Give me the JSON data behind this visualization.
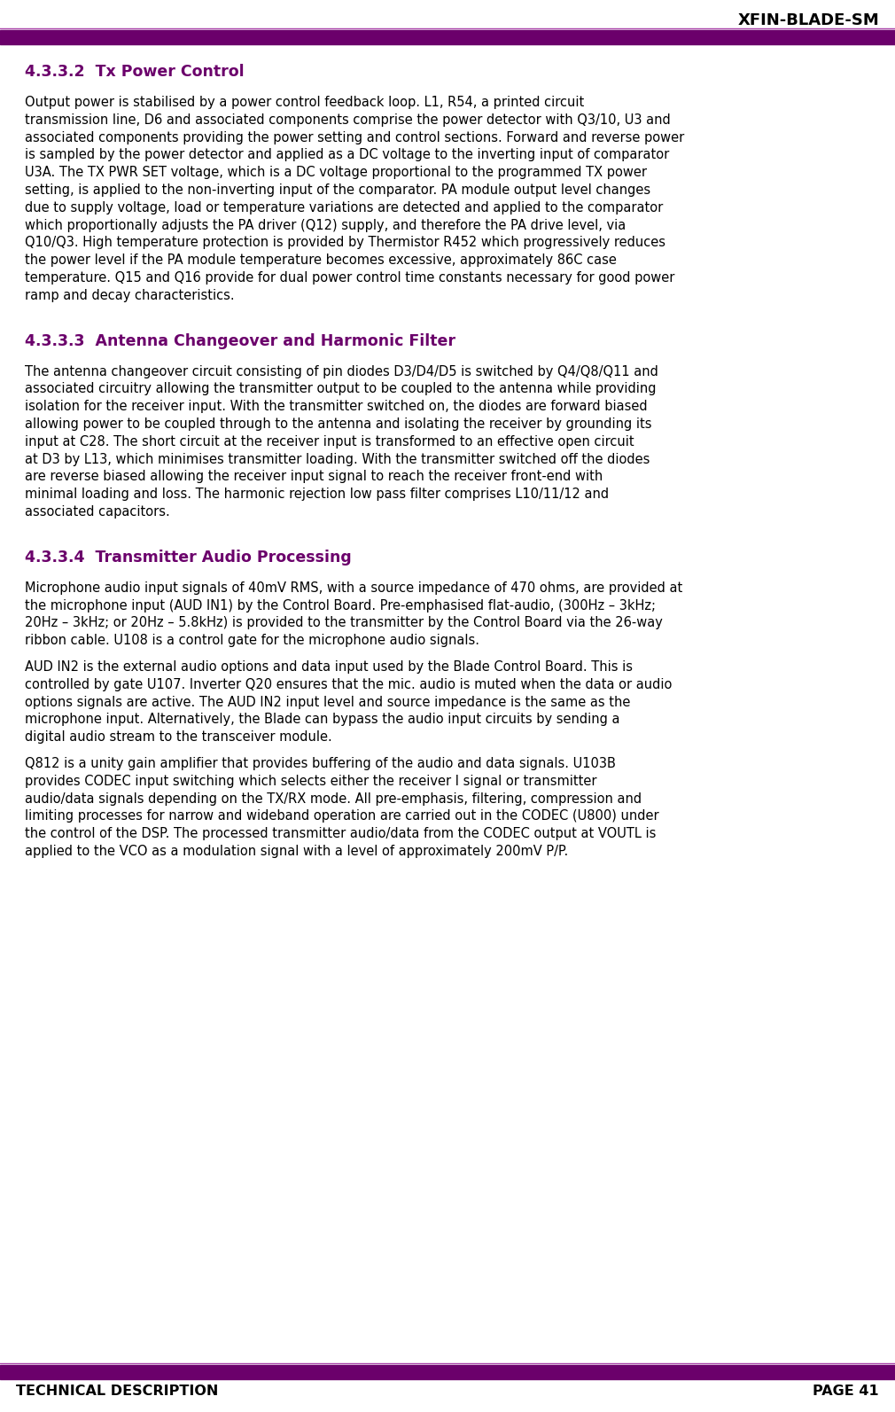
{
  "header_title": "XFIN-BLADE-SM",
  "footer_left": "TECHNICAL DESCRIPTION",
  "footer_right": "PAGE 41",
  "header_bar_color": "#6B006B",
  "footer_bar_color": "#6B006B",
  "heading_color": "#6B006B",
  "body_color": "#000000",
  "background_color": "#FFFFFF",
  "sections": [
    {
      "heading": "4.3.3.2  Tx Power Control",
      "paragraphs": [
        "Output power is stabilised by a power control feedback loop. L1, R54, a printed circuit transmission line, D6 and associated components comprise the power detector with Q3/10, U3 and associated components providing the power setting and control sections. Forward and reverse power is sampled by the power detector and applied as a DC voltage to the inverting input of comparator U3A. The TX PWR SET voltage, which is a DC voltage proportional to the programmed TX power setting, is applied to the non-inverting input of the comparator. PA module output level changes due to supply voltage, load or temperature variations are detected and applied to the comparator which proportionally adjusts the PA driver (Q12) supply, and therefore the PA drive level, via Q10/Q3. High temperature protection is provided by Thermistor R452 which progressively reduces the power level if the PA module temperature becomes excessive, approximately 86C case temperature. Q15 and Q16 provide for dual power control time constants necessary for good power ramp and decay characteristics."
      ]
    },
    {
      "heading": "4.3.3.3  Antenna Changeover and Harmonic Filter",
      "paragraphs": [
        "The antenna changeover circuit consisting of pin diodes D3/D4/D5 is switched by Q4/Q8/Q11 and associated circuitry allowing the transmitter output to be coupled to the antenna while providing isolation for the receiver input. With the transmitter switched on, the diodes are forward biased allowing power to be coupled through to the antenna and isolating the receiver by grounding its input at C28. The short circuit at the receiver input is transformed to an effective open circuit at D3 by L13, which minimises transmitter loading. With the transmitter switched off the diodes are reverse biased allowing the receiver input signal to reach the receiver front-end with minimal loading and loss. The harmonic rejection low pass filter comprises L10/11/12 and associated capacitors."
      ]
    },
    {
      "heading": "4.3.3.4  Transmitter Audio Processing",
      "paragraphs": [
        "Microphone audio input signals of 40mV RMS, with a source impedance of 470 ohms, are provided at the microphone input (AUD IN1) by the Control Board. Pre-emphasised flat-audio, (300Hz – 3kHz; 20Hz – 3kHz; or 20Hz – 5.8kHz) is provided to the transmitter by the Control Board via the 26-way ribbon cable. U108 is a control gate for the microphone audio signals.",
        "AUD IN2 is the external audio options and data input used by the Blade Control Board. This is controlled by gate U107.  Inverter Q20 ensures that the mic. audio is muted when the data or audio options signals are active.  The AUD IN2 input level and source impedance is the same as the microphone input. Alternatively, the Blade can bypass the audio input circuits by sending a digital audio stream to the transceiver module.",
        "Q812 is a unity gain amplifier that provides buffering of the audio and data signals. U103B provides CODEC input switching which selects either the receiver I signal or transmitter audio/data signals depending on the TX/RX mode.    All pre-emphasis, filtering, compression and limiting processes for narrow and wideband operation are carried out in the CODEC (U800) under the control of the DSP. The processed transmitter audio/data from the CODEC output at VOUTL is applied to the VCO as a modulation signal with a level of approximately 200mV P/P."
      ]
    }
  ]
}
